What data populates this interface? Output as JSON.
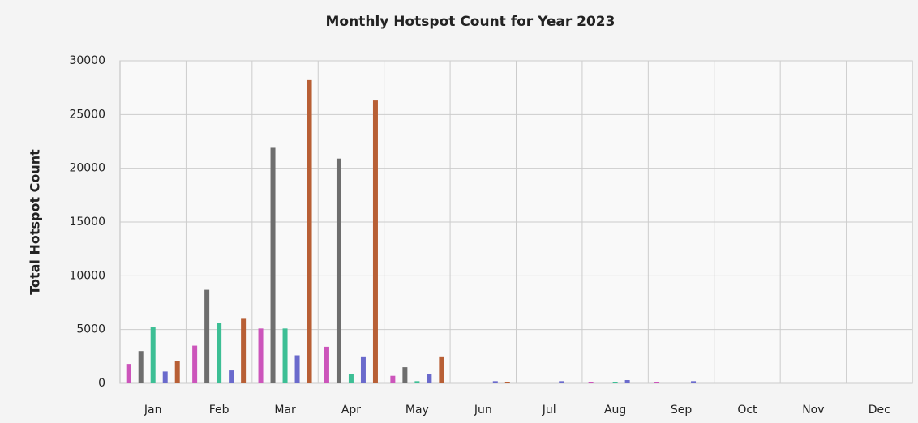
{
  "chart_data": {
    "type": "bar",
    "title": "Monthly Hotspot Count for Year 2023",
    "y_label": "Total Hotspot Count",
    "categories": [
      "Jan",
      "Feb",
      "Mar",
      "Apr",
      "May",
      "Jun",
      "Jul",
      "Aug",
      "Sep",
      "Oct",
      "Nov",
      "Dec"
    ],
    "series": [
      {
        "color": "#cc55bb",
        "values": [
          1800,
          3500,
          5100,
          3400,
          700,
          0,
          0,
          100,
          100,
          0,
          0,
          0
        ]
      },
      {
        "color": "#6e6e6e",
        "values": [
          3000,
          8700,
          21900,
          20900,
          1500,
          0,
          0,
          0,
          0,
          0,
          0,
          0
        ]
      },
      {
        "color": "#3dbf95",
        "values": [
          5200,
          5600,
          5100,
          900,
          200,
          0,
          0,
          100,
          0,
          0,
          0,
          0
        ]
      },
      {
        "color": "#6a6acc",
        "values": [
          1100,
          1200,
          2600,
          2500,
          900,
          200,
          200,
          300,
          200,
          0,
          0,
          0
        ]
      },
      {
        "color": "#b85f35",
        "values": [
          2100,
          6000,
          28200,
          26300,
          2500,
          100,
          0,
          0,
          0,
          0,
          0,
          0
        ]
      }
    ],
    "ylim": [
      0,
      30000
    ],
    "yticks": [
      0,
      5000,
      10000,
      15000,
      20000,
      25000,
      30000
    ],
    "grid": true
  }
}
